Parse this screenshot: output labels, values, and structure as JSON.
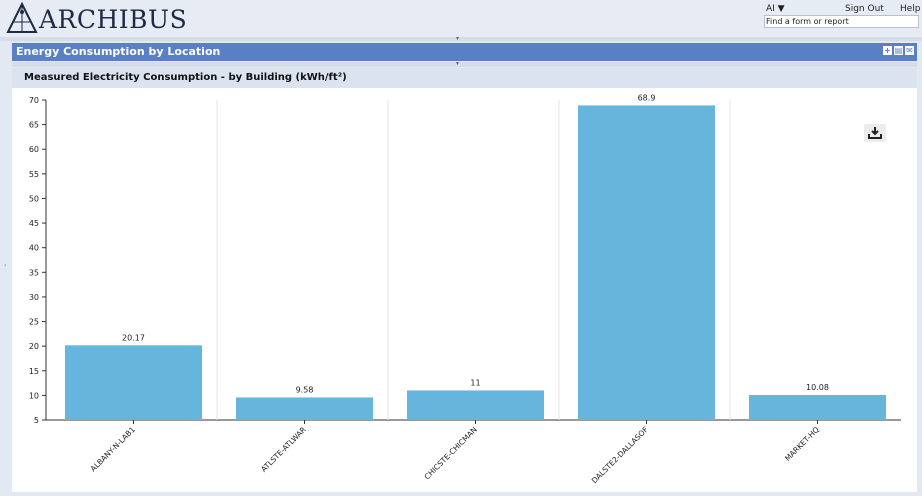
{
  "app": {
    "logo_text": "ARCHIBUS",
    "ai_menu": "AI ▼",
    "sign_out": "Sign Out",
    "help": "Help",
    "search_placeholder": "Find a form or report"
  },
  "panel": {
    "title": "Energy Consumption by Location",
    "icons": [
      "add-icon",
      "print-icon",
      "email-icon"
    ]
  },
  "chart": {
    "title": "Measured Electricity Consumption - by Building (kWh/ft²)",
    "bar_color": "#66b5dc"
  },
  "chart_data": {
    "type": "bar",
    "title": "Measured Electricity Consumption - by Building (kWh/ft²)",
    "categories": [
      "ALBANY-N-LAB1",
      "ATLSTE-ATLWAR",
      "CHICSTE-CHICMAN",
      "DALSTE2-DALLASOF",
      "MARKET-HQ"
    ],
    "values": [
      20.17,
      9.58,
      11,
      68.9,
      10.08
    ],
    "value_labels": [
      "20.17",
      "9.58",
      "11",
      "68.9",
      "10.08"
    ],
    "yticks": [
      "5",
      "10",
      "15",
      "20",
      "25",
      "30",
      "35",
      "40",
      "45",
      "50",
      "55",
      "60",
      "65",
      "70"
    ],
    "ylim": [
      5,
      70
    ],
    "xlabel": "",
    "ylabel": "",
    "grid": "vertical separators between categories",
    "legend": "none"
  }
}
